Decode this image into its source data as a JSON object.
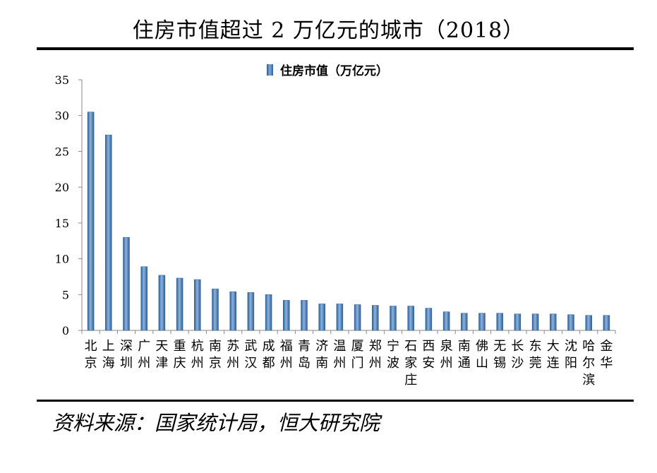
{
  "title": "住房市值超过 2 万亿元的城市（2018）",
  "source": "资料来源：国家统计局，恒大研究院",
  "colors": {
    "bar": "#4f81bd",
    "bar_edge": "#2c5f95",
    "rule": "#000000"
  },
  "chart_data": {
    "type": "bar",
    "title": "住房市值超过 2 万亿元的城市（2018）",
    "xlabel": "",
    "ylabel": "",
    "ylim": [
      0,
      35
    ],
    "yticks": [
      0,
      5,
      10,
      15,
      20,
      25,
      30,
      35
    ],
    "grid": false,
    "legend": "top-center",
    "categories": [
      [
        "北",
        "京"
      ],
      [
        "上",
        "海"
      ],
      [
        "深",
        "圳"
      ],
      [
        "广",
        "州"
      ],
      [
        "天",
        "津"
      ],
      [
        "重",
        "庆"
      ],
      [
        "杭",
        "州"
      ],
      [
        "南",
        "京"
      ],
      [
        "苏",
        "州"
      ],
      [
        "武",
        "汉"
      ],
      [
        "成",
        "都"
      ],
      [
        "福",
        "州"
      ],
      [
        "青",
        "岛"
      ],
      [
        "济",
        "南"
      ],
      [
        "温",
        "州"
      ],
      [
        "厦",
        "门"
      ],
      [
        "郑",
        "州"
      ],
      [
        "宁",
        "波"
      ],
      [
        "石",
        "家",
        "庄"
      ],
      [
        "西",
        "安"
      ],
      [
        "泉",
        "州"
      ],
      [
        "南",
        "通"
      ],
      [
        "佛",
        "山"
      ],
      [
        "无",
        "锡"
      ],
      [
        "长",
        "沙"
      ],
      [
        "东",
        "莞"
      ],
      [
        "大",
        "连"
      ],
      [
        "沈",
        "阳"
      ],
      [
        "哈",
        "尔",
        "滨"
      ],
      [
        "金",
        "华"
      ]
    ],
    "series": [
      {
        "name": "住房市值（万亿元）",
        "values": [
          30.5,
          27.3,
          13.0,
          8.9,
          7.7,
          7.3,
          7.1,
          5.8,
          5.4,
          5.3,
          5.0,
          4.2,
          4.2,
          3.7,
          3.7,
          3.6,
          3.5,
          3.4,
          3.4,
          3.1,
          2.6,
          2.4,
          2.4,
          2.4,
          2.3,
          2.3,
          2.3,
          2.2,
          2.1,
          2.1
        ]
      }
    ]
  }
}
